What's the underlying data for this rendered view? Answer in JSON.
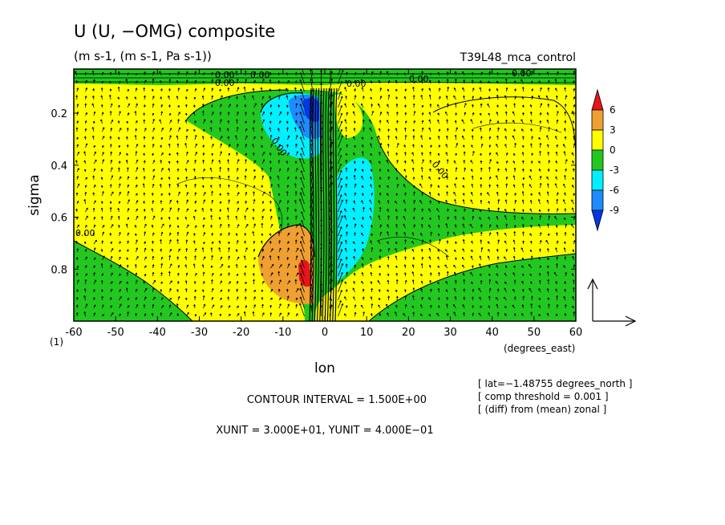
{
  "chart_data": {
    "type": "contour",
    "title": "U (U, −OMG) composite",
    "subtitle": "(m s-1, (m s-1, Pa s-1))",
    "experiment": "T39L48_mca_control",
    "xlabel": "lon",
    "xunits": "(degrees_east)",
    "ylabel": "sigma",
    "panel_label": "(1)",
    "x_ticks": [
      -60,
      -50,
      -40,
      -30,
      -20,
      -10,
      0,
      10,
      20,
      30,
      40,
      50,
      60
    ],
    "y_ticks": [
      0.2,
      0.4,
      0.6,
      0.8
    ],
    "xlim": [
      -60,
      60
    ],
    "ylim": [
      1.0,
      0.03
    ],
    "contour_labels": [
      "0.00",
      "0.00",
      "0.00",
      "0.00",
      "0.00",
      "0.00",
      "0.00",
      "0.00",
      "0.00"
    ],
    "colorbar": {
      "levels": [
        6,
        3,
        0,
        -3,
        -6,
        -9
      ],
      "colors": [
        "#e8141b",
        "#f0a030",
        "#ffff00",
        "#22c820",
        "#00f0ff",
        "#1e8cff",
        "#0038e6"
      ]
    },
    "notes": [
      "[ lat=−1.48755 degrees_north ]",
      "[ comp threshold = 0.001 ]",
      "[ (diff) from (mean) zonal ]"
    ],
    "contour_interval": "CONTOUR INTERVAL = 1.500E+00",
    "vector_units": "XUNIT = 3.000E+01, YUNIT = 4.000E−01"
  }
}
